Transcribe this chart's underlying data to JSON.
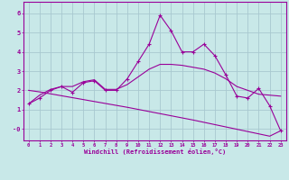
{
  "background_color": "#c8e8e8",
  "grid_color": "#a8c8d0",
  "line_color": "#990099",
  "xlabel": "Windchill (Refroidissement éolien,°C)",
  "x": [
    0,
    1,
    2,
    3,
    4,
    5,
    6,
    7,
    8,
    9,
    10,
    11,
    12,
    13,
    14,
    15,
    16,
    17,
    18,
    19,
    20,
    21,
    22,
    23
  ],
  "y_main": [
    1.3,
    1.6,
    2.0,
    2.2,
    1.9,
    2.4,
    2.5,
    2.0,
    2.0,
    2.6,
    3.5,
    4.4,
    5.9,
    5.1,
    4.0,
    4.0,
    4.4,
    3.8,
    2.8,
    1.7,
    1.6,
    2.1,
    1.2,
    -0.1
  ],
  "y_curve": [
    1.3,
    1.75,
    2.05,
    2.2,
    2.2,
    2.45,
    2.55,
    2.05,
    2.05,
    2.3,
    2.7,
    3.1,
    3.35,
    3.35,
    3.3,
    3.2,
    3.1,
    2.9,
    2.6,
    2.2,
    2.0,
    1.8,
    1.75,
    1.7
  ],
  "y_decline": [
    2.0,
    1.92,
    1.82,
    1.72,
    1.62,
    1.52,
    1.42,
    1.32,
    1.22,
    1.12,
    1.01,
    0.9,
    0.79,
    0.68,
    0.57,
    0.46,
    0.34,
    0.22,
    0.1,
    -0.02,
    -0.14,
    -0.26,
    -0.38,
    -0.1
  ],
  "ylim": [
    -0.6,
    6.6
  ],
  "yticks": [
    0,
    1,
    2,
    3,
    4,
    5,
    6
  ]
}
